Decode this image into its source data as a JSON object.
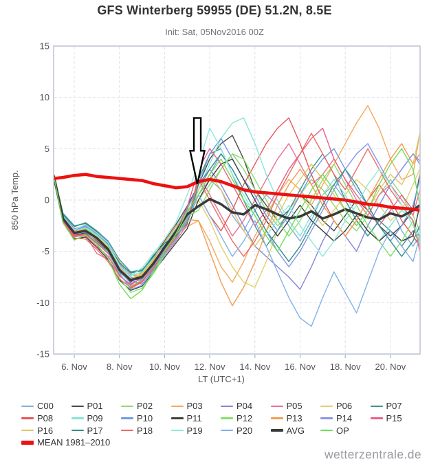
{
  "header": {
    "title": "GFS Winterberg 59955 (DE) 51.2N, 8.5E",
    "subtitle": "Init: Sat, 05Nov2016 00Z"
  },
  "watermark": "wetterzentrale.de",
  "annotation": {
    "shape": "down-arrow",
    "day": 11.45,
    "top_value": 8.0,
    "head_value": 4.8,
    "tip_value": 1.55,
    "fill": "#ffffff",
    "stroke": "#000000"
  },
  "chart_data": {
    "type": "line",
    "title": "GFS Winterberg 59955 (DE) 51.2N, 8.5E",
    "xlabel": "LT (UTC+1)",
    "ylabel": "850 hPa Temp.",
    "xlim": [
      5.1,
      21.3
    ],
    "ylim": [
      -15,
      15
    ],
    "grid": true,
    "legend_position": "bottom",
    "yticks": [
      -15,
      -10,
      -5,
      0,
      5,
      10,
      15
    ],
    "xticks": [
      {
        "day": 6,
        "label": "6. Nov"
      },
      {
        "day": 8,
        "label": "8. Nov"
      },
      {
        "day": 10,
        "label": "10. Nov"
      },
      {
        "day": 12,
        "label": "12. Nov"
      },
      {
        "day": 14,
        "label": "14. Nov"
      },
      {
        "day": 16,
        "label": "16. Nov"
      },
      {
        "day": 18,
        "label": "18. Nov"
      },
      {
        "day": 20,
        "label": "20. Nov"
      }
    ],
    "x_days": [
      5.1,
      5.5,
      6.0,
      6.5,
      7.0,
      7.5,
      8.0,
      8.5,
      9.0,
      9.5,
      10.0,
      10.5,
      11.0,
      11.5,
      12.0,
      12.5,
      13.0,
      13.5,
      14.0,
      14.5,
      15.0,
      15.5,
      16.0,
      16.5,
      17.0,
      17.5,
      18.0,
      18.5,
      19.0,
      19.5,
      20.0,
      20.5,
      21.0,
      21.3
    ],
    "series": [
      {
        "name": "C00",
        "color": "#82aede",
        "width": 1.4,
        "values": [
          2.4,
          -1.6,
          -3.0,
          -2.6,
          -3.2,
          -4.2,
          -6.2,
          -7.3,
          -7.5,
          -6.3,
          -5.0,
          -3.6,
          -2.2,
          0.5,
          2.0,
          1.0,
          -1.5,
          -3.0,
          -1.0,
          0.5,
          -0.5,
          -2.5,
          -4.0,
          -2.0,
          0.5,
          1.5,
          0.0,
          -2.0,
          -3.5,
          -2.0,
          -0.5,
          -3.0,
          -4.5,
          -3.5
        ]
      },
      {
        "name": "P01",
        "color": "#4a4a4a",
        "width": 1.4,
        "values": [
          2.3,
          -2.0,
          -3.4,
          -3.2,
          -4.0,
          -5.0,
          -7.0,
          -8.0,
          -7.0,
          -5.5,
          -4.0,
          -2.4,
          -0.6,
          1.5,
          4.0,
          5.5,
          6.3,
          4.0,
          1.0,
          -0.5,
          -2.0,
          -1.0,
          0.5,
          -0.5,
          -2.0,
          -3.0,
          -1.5,
          0.0,
          -1.0,
          -2.5,
          -3.5,
          -2.5,
          -1.0,
          2.5
        ]
      },
      {
        "name": "P02",
        "color": "#8ed973",
        "width": 1.4,
        "values": [
          2.2,
          -1.9,
          -3.3,
          -2.8,
          -3.4,
          -4.8,
          -7.2,
          -8.4,
          -7.8,
          -6.4,
          -4.8,
          -3.0,
          -1.2,
          0.0,
          1.5,
          3.0,
          4.5,
          3.0,
          1.0,
          -1.0,
          -2.5,
          -1.5,
          0.5,
          2.0,
          1.0,
          -0.5,
          -2.0,
          -3.0,
          -1.5,
          0.5,
          2.0,
          0.5,
          -1.5,
          -3.0
        ]
      },
      {
        "name": "P03",
        "color": "#f5a95f",
        "width": 1.4,
        "values": [
          2.3,
          -1.7,
          -3.1,
          -3.1,
          -3.8,
          -4.4,
          -6.0,
          -7.2,
          -7.4,
          -6.2,
          -4.4,
          -3.4,
          -2.6,
          -2.0,
          -4.0,
          -6.5,
          -8.0,
          -6.0,
          -3.5,
          -1.5,
          0.5,
          2.0,
          1.0,
          -0.5,
          1.5,
          3.5,
          5.5,
          7.5,
          9.2,
          7.0,
          4.0,
          2.0,
          2.5,
          6.5
        ]
      },
      {
        "name": "P04",
        "color": "#8585dc",
        "width": 1.4,
        "values": [
          2.4,
          -1.5,
          -2.8,
          -2.5,
          -3.3,
          -4.3,
          -6.4,
          -7.8,
          -8.2,
          -6.8,
          -5.2,
          -3.8,
          -1.8,
          1.0,
          3.0,
          1.5,
          -0.5,
          -2.5,
          -4.5,
          -5.5,
          -6.5,
          -7.5,
          -8.7,
          -6.5,
          -4.0,
          -2.0,
          -3.5,
          -5.0,
          -2.5,
          -0.5,
          1.5,
          3.0,
          4.5,
          3.8
        ]
      },
      {
        "name": "P05",
        "color": "#e87292",
        "width": 1.4,
        "values": [
          2.2,
          -2.1,
          -3.6,
          -3.4,
          -5.2,
          -5.8,
          -7.4,
          -8.2,
          -7.6,
          -6.6,
          -5.4,
          -4.0,
          -2.4,
          2.5,
          0.5,
          -1.5,
          -3.5,
          -2.0,
          0.0,
          2.0,
          4.0,
          5.5,
          3.5,
          1.5,
          2.5,
          4.0,
          2.0,
          0.0,
          -1.5,
          0.5,
          1.5,
          0.0,
          -1.5,
          1.0
        ]
      },
      {
        "name": "P06",
        "color": "#e3cf6b",
        "width": 1.4,
        "values": [
          2.3,
          -1.8,
          -3.2,
          -2.9,
          -3.5,
          -4.5,
          -6.8,
          -7.7,
          -7.1,
          -5.8,
          -4.2,
          -2.8,
          -1.0,
          0.0,
          -2.0,
          -4.5,
          -6.5,
          -8.0,
          -8.5,
          -6.0,
          -3.0,
          -1.0,
          0.5,
          -1.0,
          -2.5,
          -1.0,
          0.5,
          2.0,
          1.0,
          -0.5,
          -2.0,
          -1.0,
          1.5,
          3.0
        ]
      },
      {
        "name": "P07",
        "color": "#3d9491",
        "width": 1.4,
        "values": [
          2.5,
          -1.4,
          -2.6,
          -2.2,
          -3.0,
          -4.0,
          -5.8,
          -7.0,
          -6.8,
          -5.6,
          -4.4,
          -3.2,
          -2.0,
          2.0,
          4.5,
          5.0,
          2.5,
          0.0,
          -2.5,
          -4.5,
          -3.0,
          -1.0,
          1.0,
          3.0,
          4.5,
          2.5,
          0.0,
          -2.0,
          -3.5,
          -2.0,
          -3.0,
          -4.5,
          -3.0,
          -3.5
        ]
      },
      {
        "name": "P08",
        "color": "#ea5455",
        "width": 1.4,
        "values": [
          2.2,
          -2.0,
          -3.5,
          -3.3,
          -4.2,
          -5.2,
          -7.2,
          -8.6,
          -8.0,
          -6.6,
          -5.0,
          -3.4,
          -1.4,
          0.5,
          -1.5,
          -3.0,
          -1.0,
          1.5,
          3.5,
          5.5,
          7.0,
          8.0,
          5.5,
          2.5,
          0.0,
          -2.0,
          -3.5,
          -2.0,
          0.0,
          1.5,
          0.0,
          -2.0,
          -3.5,
          -4.5
        ]
      },
      {
        "name": "P09",
        "color": "#84e7d4",
        "width": 1.4,
        "values": [
          2.4,
          -1.6,
          -3.0,
          -2.7,
          -3.4,
          -4.4,
          -6.6,
          -7.4,
          -7.0,
          -5.7,
          -4.3,
          -2.6,
          -0.8,
          1.0,
          3.5,
          6.0,
          7.5,
          8.0,
          5.5,
          2.5,
          0.0,
          -2.0,
          -3.5,
          -1.5,
          0.5,
          2.0,
          0.5,
          -1.5,
          -3.0,
          -4.0,
          -2.5,
          -1.0,
          -2.0,
          -3.5
        ]
      },
      {
        "name": "P10",
        "color": "#6f9ce3",
        "width": 1.4,
        "values": [
          2.3,
          -1.9,
          -3.3,
          -3.0,
          -3.7,
          -4.7,
          -6.9,
          -8.1,
          -7.7,
          -6.1,
          -4.5,
          -2.9,
          -0.9,
          1.5,
          4.5,
          6.0,
          4.0,
          2.0,
          0.5,
          -1.5,
          -3.0,
          -1.5,
          0.5,
          2.5,
          4.0,
          5.0,
          3.0,
          1.0,
          -0.5,
          -2.5,
          -4.0,
          -2.5,
          -0.5,
          2.0
        ]
      },
      {
        "name": "P11",
        "color": "#3f3f3f",
        "width": 1.4,
        "values": [
          2.3,
          -2.2,
          -3.8,
          -3.6,
          -4.6,
          -5.8,
          -7.8,
          -8.8,
          -8.4,
          -7.0,
          -5.6,
          -4.2,
          -2.8,
          0.0,
          2.0,
          3.5,
          4.0,
          2.0,
          0.0,
          -2.0,
          -3.5,
          -2.0,
          -0.5,
          -2.0,
          -3.0,
          -4.0,
          -3.0,
          -1.5,
          -3.0,
          -4.0,
          -3.0,
          -4.0,
          -3.5,
          -0.5
        ]
      },
      {
        "name": "P12",
        "color": "#86e067",
        "width": 1.4,
        "values": [
          2.2,
          -1.8,
          -3.1,
          -2.8,
          -3.6,
          -5.0,
          -7.6,
          -9.0,
          -8.6,
          -7.2,
          -5.4,
          -3.6,
          -1.6,
          -1.0,
          1.0,
          3.0,
          4.5,
          4.0,
          2.0,
          0.0,
          -2.0,
          -3.5,
          -2.0,
          0.0,
          2.0,
          3.5,
          1.5,
          -0.5,
          -2.5,
          -4.0,
          -5.5,
          -4.0,
          -2.0,
          -4.5
        ]
      },
      {
        "name": "P13",
        "color": "#f39c50",
        "width": 1.4,
        "values": [
          2.3,
          -1.7,
          -3.0,
          -2.9,
          -3.9,
          -4.9,
          -6.7,
          -7.9,
          -7.3,
          -5.9,
          -4.1,
          -2.5,
          -1.9,
          -2.0,
          -5.0,
          -8.0,
          -10.3,
          -8.5,
          -6.0,
          -3.0,
          -0.5,
          1.5,
          3.0,
          1.5,
          -0.5,
          -2.0,
          -3.5,
          -2.0,
          0.0,
          2.0,
          4.0,
          5.5,
          3.5,
          4.5
        ]
      },
      {
        "name": "P14",
        "color": "#8894ea",
        "width": 1.4,
        "values": [
          2.4,
          -1.5,
          -2.9,
          -2.6,
          -3.1,
          -4.1,
          -6.3,
          -7.5,
          -7.9,
          -6.5,
          -4.9,
          -3.3,
          -1.3,
          0.5,
          2.5,
          4.5,
          3.0,
          1.0,
          -1.0,
          -3.0,
          -5.0,
          -6.5,
          -5.0,
          -3.0,
          -1.0,
          1.0,
          3.0,
          4.5,
          5.5,
          3.5,
          1.5,
          3.0,
          4.5,
          3.5
        ]
      },
      {
        "name": "P15",
        "color": "#ea5f87",
        "width": 1.4,
        "values": [
          2.2,
          -2.0,
          -3.4,
          -3.5,
          -4.5,
          -5.5,
          -7.3,
          -8.3,
          -7.5,
          -6.3,
          -4.7,
          -3.1,
          -0.7,
          3.0,
          5.0,
          3.5,
          1.5,
          -0.5,
          -2.5,
          -1.0,
          1.0,
          3.0,
          4.5,
          6.0,
          7.0,
          4.0,
          2.0,
          0.5,
          -1.0,
          -2.5,
          -1.0,
          0.5,
          -1.0,
          -0.5
        ]
      },
      {
        "name": "P16",
        "color": "#e0c763",
        "width": 1.4,
        "values": [
          2.3,
          -1.9,
          -3.2,
          -3.0,
          -3.8,
          -4.6,
          -6.5,
          -7.7,
          -7.2,
          -6.0,
          -4.6,
          -3.0,
          -1.5,
          1.0,
          2.5,
          1.0,
          -1.0,
          -3.0,
          -4.5,
          -3.0,
          -1.5,
          0.5,
          2.0,
          3.5,
          2.0,
          0.5,
          -1.0,
          -2.5,
          -1.0,
          1.0,
          2.5,
          1.5,
          3.5,
          6.5
        ]
      },
      {
        "name": "P17",
        "color": "#348f88",
        "width": 1.4,
        "values": [
          2.5,
          -1.3,
          -2.5,
          -2.3,
          -3.1,
          -4.3,
          -6.1,
          -7.1,
          -6.9,
          -5.4,
          -4.2,
          -3.5,
          -2.3,
          1.5,
          3.0,
          4.5,
          3.0,
          1.0,
          -1.0,
          -3.0,
          -4.5,
          -6.0,
          -4.5,
          -2.5,
          -0.5,
          1.5,
          3.0,
          1.5,
          -0.5,
          -2.5,
          -4.0,
          -5.5,
          -4.0,
          -2.5
        ]
      },
      {
        "name": "P18",
        "color": "#ed6a64",
        "width": 1.4,
        "values": [
          2.2,
          -2.1,
          -3.7,
          -3.8,
          -4.8,
          -6.0,
          -7.7,
          -8.5,
          -7.9,
          -6.7,
          -5.1,
          -3.7,
          -2.1,
          2.0,
          0.0,
          -2.0,
          -4.0,
          -5.5,
          -4.0,
          -2.0,
          0.5,
          2.5,
          4.5,
          6.5,
          4.5,
          2.5,
          1.0,
          3.0,
          5.0,
          3.0,
          1.0,
          -0.5,
          -2.0,
          -5.0
        ]
      },
      {
        "name": "P19",
        "color": "#8fe9de",
        "width": 1.4,
        "values": [
          2.4,
          -1.6,
          -2.9,
          -2.4,
          -3.2,
          -4.2,
          -6.4,
          -7.4,
          -6.6,
          -5.2,
          -3.8,
          -2.2,
          0.5,
          3.5,
          7.0,
          5.0,
          2.5,
          0.5,
          -1.5,
          -3.5,
          -2.0,
          -0.5,
          -2.5,
          -4.0,
          -5.5,
          -4.0,
          -2.0,
          -0.5,
          1.5,
          3.0,
          1.5,
          -0.5,
          -2.5,
          -4.0
        ]
      },
      {
        "name": "P20",
        "color": "#7fb2ea",
        "width": 1.4,
        "values": [
          2.3,
          -1.8,
          -3.3,
          -3.1,
          -4.1,
          -5.1,
          -7.1,
          -8.7,
          -8.3,
          -6.9,
          -5.3,
          -3.9,
          -1.9,
          0.5,
          -1.5,
          -3.5,
          -5.5,
          -4.0,
          -2.0,
          -4.5,
          -7.0,
          -9.5,
          -11.5,
          -12.3,
          -9.5,
          -7.0,
          -9.0,
          -11.0,
          -8.0,
          -5.0,
          -3.0,
          -4.5,
          -6.0,
          -3.5
        ]
      },
      {
        "name": "AVG",
        "color": "#3a3a3a",
        "width": 3.5,
        "values": [
          2.3,
          -1.8,
          -3.2,
          -3.0,
          -3.7,
          -4.8,
          -6.8,
          -7.8,
          -7.5,
          -6.2,
          -4.6,
          -3.1,
          -1.4,
          -0.6,
          0.1,
          -0.4,
          -1.2,
          -1.4,
          -0.5,
          -0.9,
          -1.4,
          -1.8,
          -1.6,
          -1.1,
          -1.8,
          -1.4,
          -0.9,
          -1.3,
          -1.7,
          -1.9,
          -1.3,
          -1.6,
          -1.0,
          -0.5
        ]
      },
      {
        "name": "OP",
        "color": "#6fdd58",
        "width": 1.4,
        "values": [
          2.3,
          -2.2,
          -3.9,
          -3.4,
          -4.3,
          -5.7,
          -8.2,
          -9.6,
          -8.8,
          -7.0,
          -5.0,
          -3.3,
          -1.1,
          0.5,
          2.5,
          4.0,
          2.0,
          0.0,
          -1.5,
          -3.5,
          -5.0,
          -3.0,
          -1.0,
          1.0,
          2.5,
          1.0,
          -1.0,
          -2.5,
          -1.0,
          1.5,
          3.5,
          5.0,
          3.0,
          -0.5
        ]
      },
      {
        "name": "MEAN 1981–2010",
        "color": "#ed1111",
        "width": 4.5,
        "values": [
          2.1,
          2.2,
          2.4,
          2.5,
          2.3,
          2.2,
          2.1,
          2.0,
          1.9,
          1.6,
          1.4,
          1.2,
          1.3,
          1.8,
          2.0,
          1.8,
          1.4,
          1.0,
          0.8,
          0.7,
          0.6,
          0.5,
          0.4,
          0.3,
          0.2,
          0.1,
          0.0,
          -0.2,
          -0.4,
          -0.5,
          -0.7,
          -0.8,
          -0.9,
          -1.0
        ]
      }
    ]
  }
}
